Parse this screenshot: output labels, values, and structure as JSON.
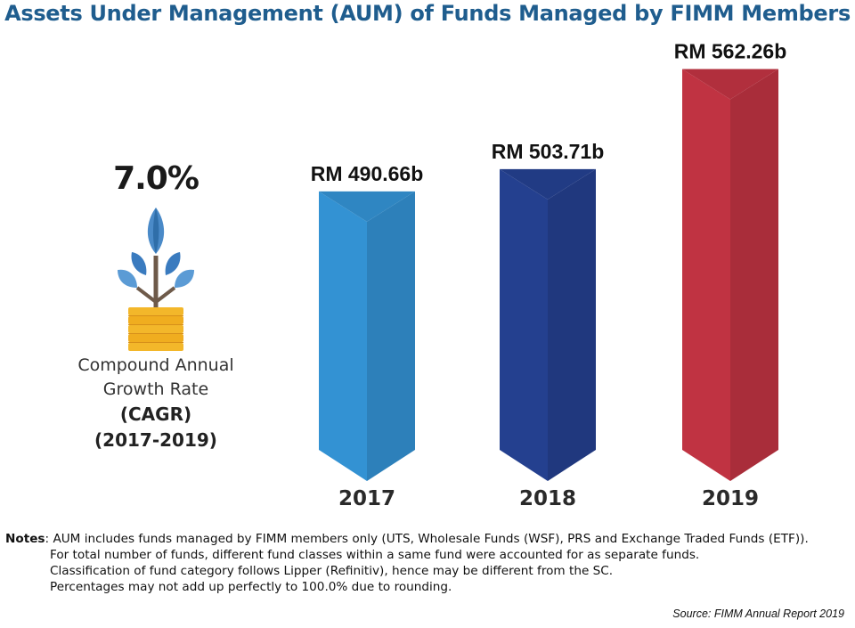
{
  "title": "Assets Under Management (AUM) of Funds Managed by FIMM Members",
  "cagr": {
    "value": "7.0%",
    "label_line1": "Compound Annual",
    "label_line2": "Growth Rate",
    "label_line3": "(CAGR)",
    "label_line4": "(2017-2019)"
  },
  "chart_data": {
    "type": "bar",
    "title": "Assets Under Management (AUM) of Funds Managed by FIMM Members",
    "categories": [
      "2017",
      "2018",
      "2019"
    ],
    "values": [
      490.66,
      503.71,
      562.26
    ],
    "value_labels": [
      "RM 490.66b",
      "RM 503.71b",
      "RM 562.26b"
    ],
    "unit": "RM billion",
    "colors": [
      "#3392d3",
      "#24408f",
      "#c03342"
    ],
    "xlabel": "",
    "ylabel": ""
  },
  "notes": {
    "heading": "Notes",
    "line1": "AUM includes funds managed by FIMM members only (UTS, Wholesale Funds (WSF), PRS and Exchange Traded Funds (ETF)).",
    "line2": "For total number of funds, different fund classes within a same fund were accounted for as separate funds.",
    "line3": "Classification of fund category follows Lipper (Refinitiv), hence may be different from the SC.",
    "line4": "Percentages may not add up perfectly to 100.0% due to rounding."
  },
  "source": "Source: FIMM Annual Report 2019",
  "icons": {
    "plant": "plant-coins-icon"
  }
}
